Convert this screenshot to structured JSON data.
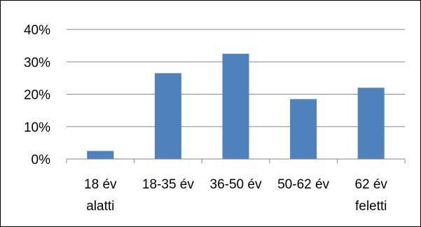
{
  "chart_data": {
    "type": "bar",
    "categories": [
      [
        "18 év",
        "alatti"
      ],
      [
        "18-35 év"
      ],
      [
        "36-50 év"
      ],
      [
        "50-62 év"
      ],
      [
        "62 év",
        "feletti"
      ]
    ],
    "values": [
      2.5,
      26.5,
      32.5,
      18.5,
      22
    ],
    "y_ticks": [
      "0%",
      "10%",
      "20%",
      "30%",
      "40%"
    ],
    "ylim": [
      0,
      40
    ],
    "y_tick_step": 10,
    "grid": true,
    "legend": "none",
    "title": "",
    "xlabel": "",
    "ylabel": "",
    "bar_color": "#4f81bd",
    "grid_color": "#878787"
  }
}
